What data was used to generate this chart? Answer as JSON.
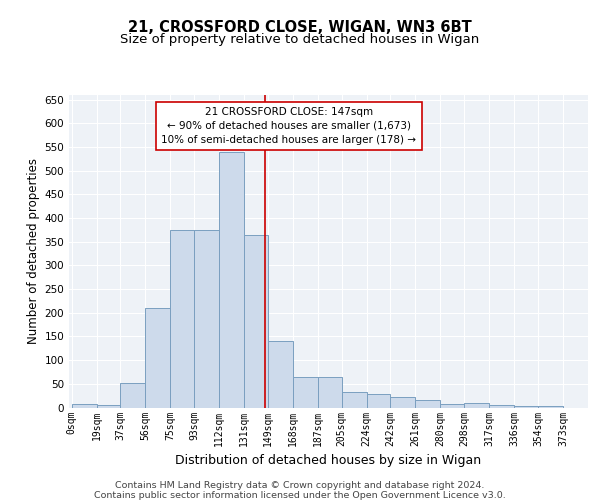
{
  "title": "21, CROSSFORD CLOSE, WIGAN, WN3 6BT",
  "subtitle": "Size of property relative to detached houses in Wigan",
  "xlabel": "Distribution of detached houses by size in Wigan",
  "ylabel": "Number of detached properties",
  "footer_line1": "Contains HM Land Registry data © Crown copyright and database right 2024.",
  "footer_line2": "Contains public sector information licensed under the Open Government Licence v3.0.",
  "bar_left_edges": [
    0,
    19,
    37,
    56,
    75,
    93,
    112,
    131,
    149,
    168,
    187,
    205,
    224,
    242,
    261,
    280,
    298,
    317,
    336,
    354
  ],
  "bar_widths": [
    19,
    18,
    19,
    19,
    18,
    19,
    19,
    18,
    19,
    19,
    18,
    19,
    18,
    19,
    19,
    18,
    19,
    19,
    18,
    19
  ],
  "bar_heights": [
    7,
    5,
    52,
    210,
    375,
    375,
    540,
    365,
    140,
    65,
    65,
    33,
    28,
    22,
    15,
    8,
    10,
    5,
    4,
    3
  ],
  "bar_facecolor": "#cddaeb",
  "bar_edgecolor": "#7a9fc0",
  "tick_labels": [
    "0sqm",
    "19sqm",
    "37sqm",
    "56sqm",
    "75sqm",
    "93sqm",
    "112sqm",
    "131sqm",
    "149sqm",
    "168sqm",
    "187sqm",
    "205sqm",
    "224sqm",
    "242sqm",
    "261sqm",
    "280sqm",
    "298sqm",
    "317sqm",
    "336sqm",
    "354sqm",
    "373sqm"
  ],
  "tick_positions": [
    0,
    19,
    37,
    56,
    75,
    93,
    112,
    131,
    149,
    168,
    187,
    205,
    224,
    242,
    261,
    280,
    298,
    317,
    336,
    354,
    373
  ],
  "ylim": [
    0,
    660
  ],
  "xlim": [
    -2,
    392
  ],
  "vline_x": 147,
  "vline_color": "#cc0000",
  "annotation_text": "21 CROSSFORD CLOSE: 147sqm\n← 90% of detached houses are smaller (1,673)\n10% of semi-detached houses are larger (178) →",
  "annotation_box_color": "#cc0000",
  "bg_color": "#eef2f7",
  "grid_color": "#ffffff",
  "yticks": [
    0,
    50,
    100,
    150,
    200,
    250,
    300,
    350,
    400,
    450,
    500,
    550,
    600,
    650
  ],
  "title_fontsize": 10.5,
  "subtitle_fontsize": 9.5,
  "ylabel_fontsize": 8.5,
  "xlabel_fontsize": 9,
  "tick_fontsize": 7,
  "annotation_fontsize": 7.5,
  "footer_fontsize": 6.8
}
